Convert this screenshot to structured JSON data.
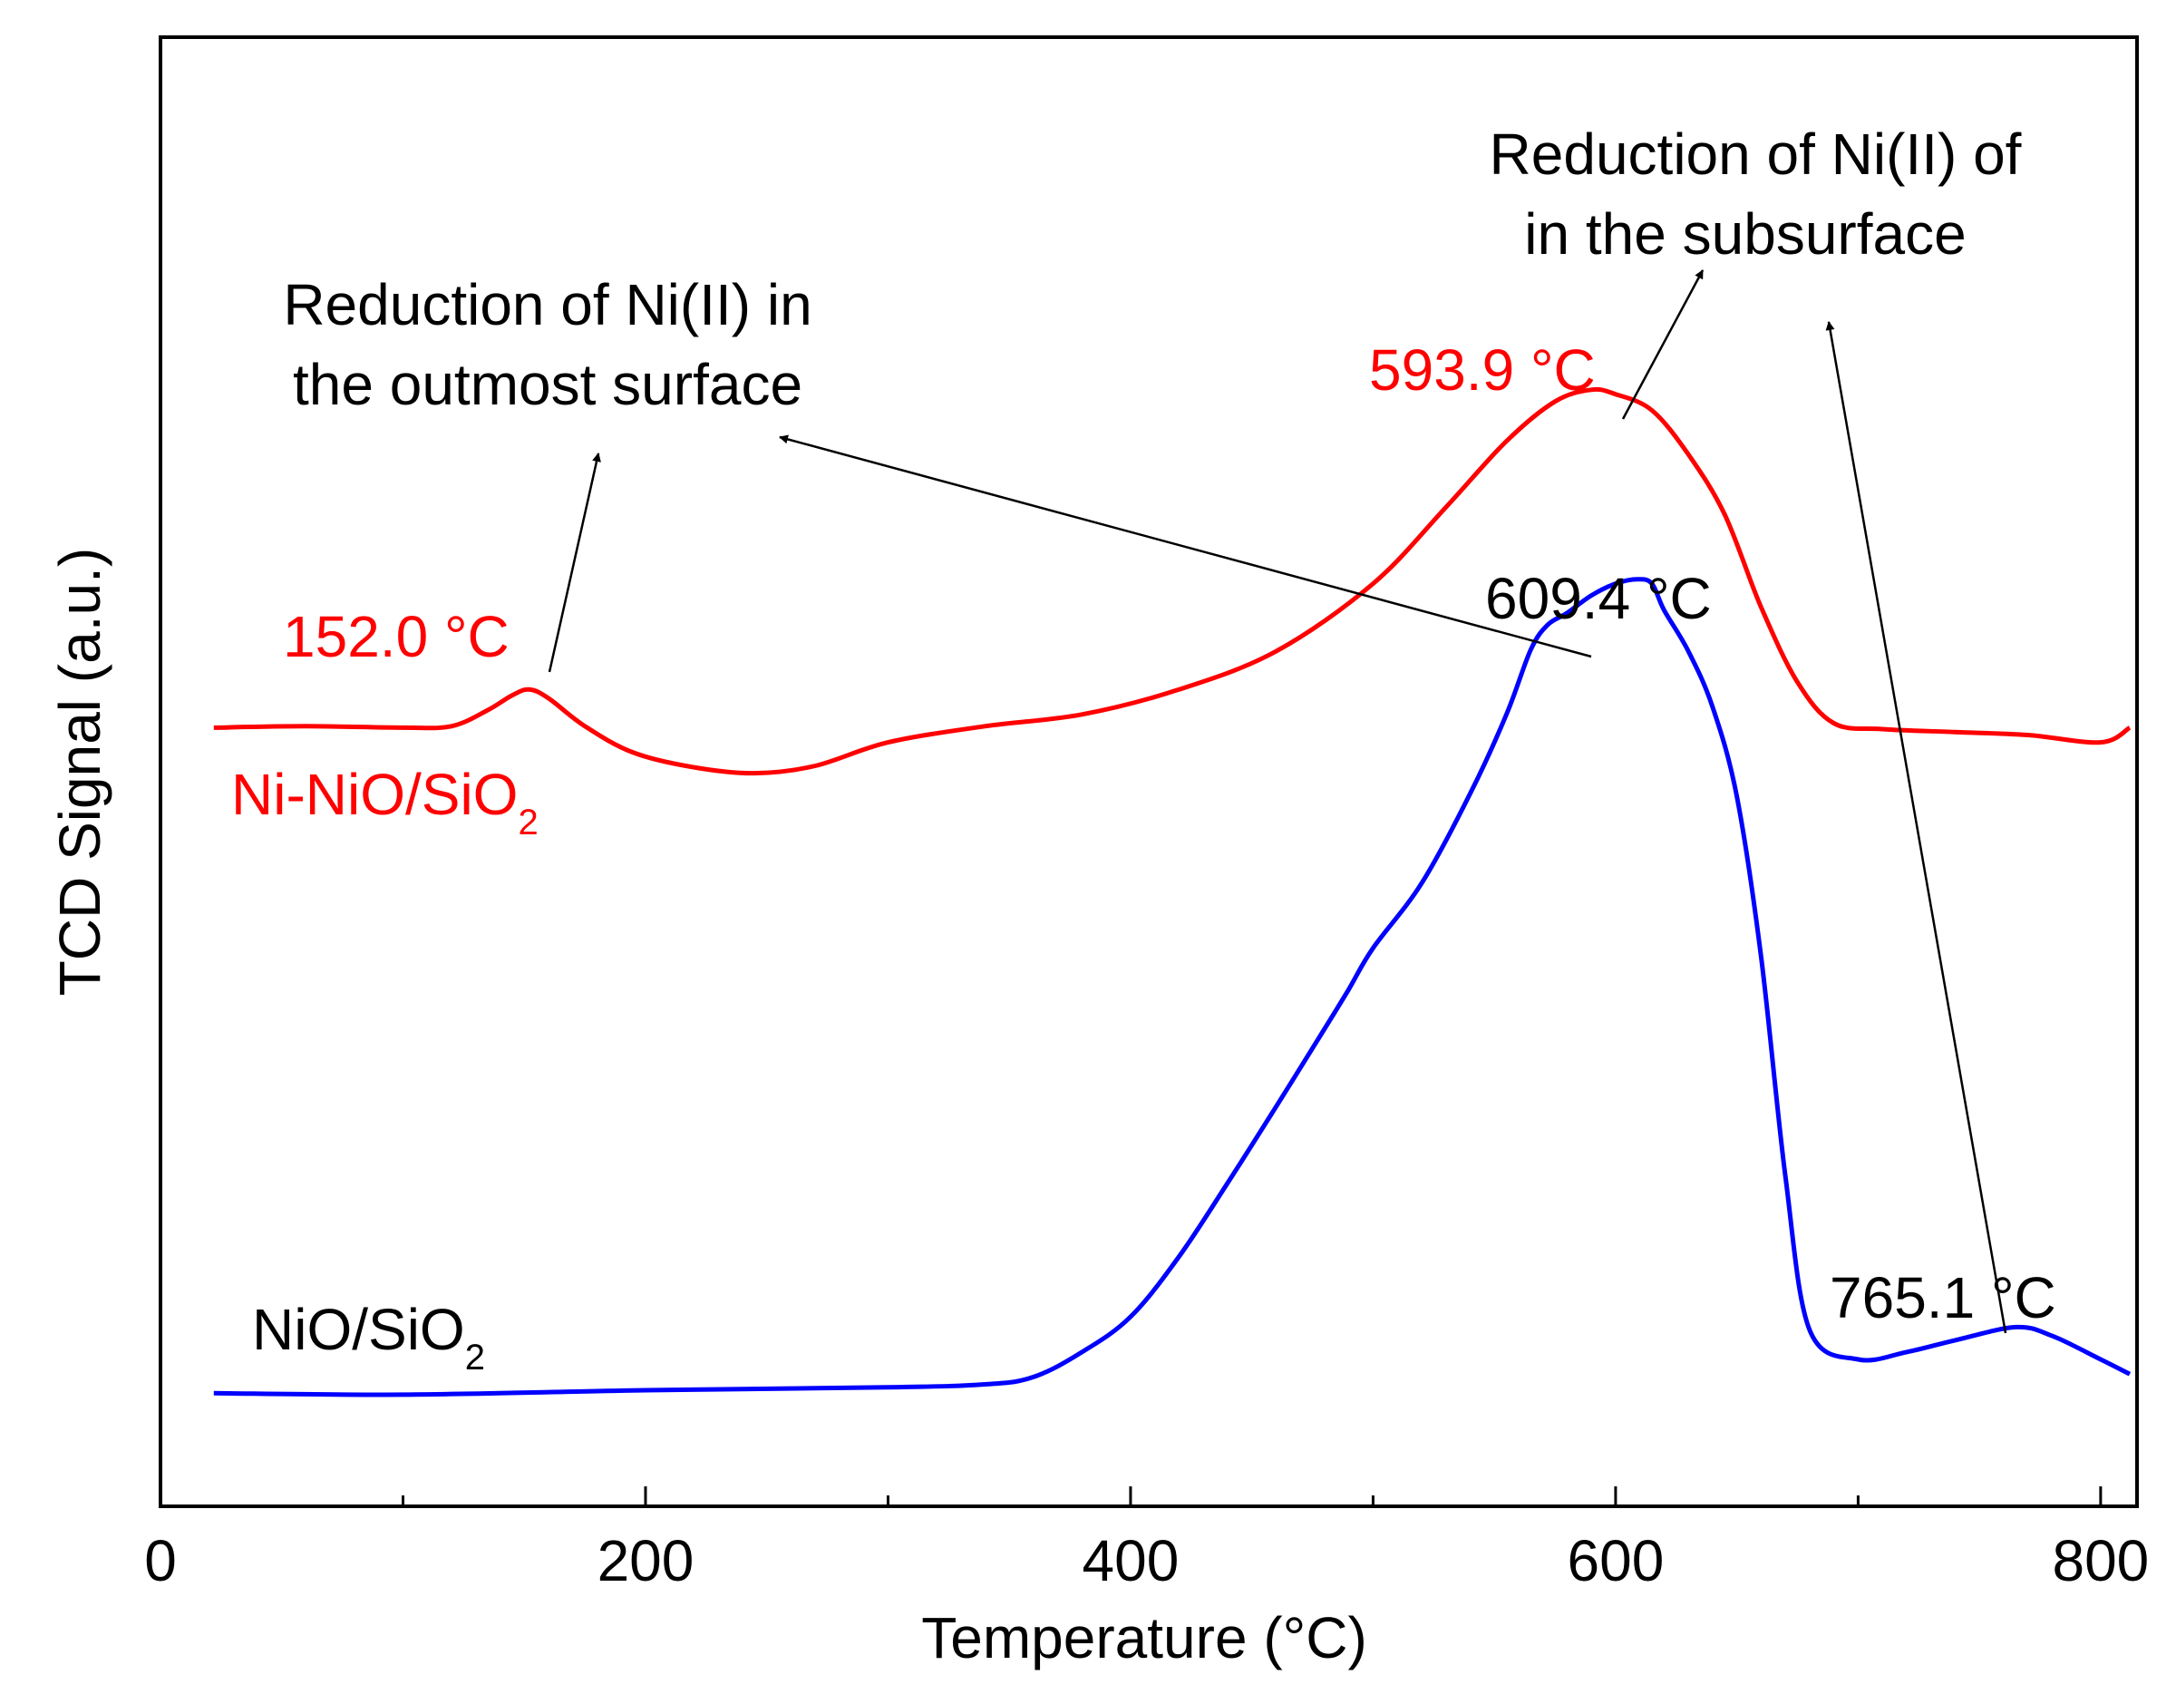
{
  "chart_data": {
    "type": "line",
    "title": "",
    "xlabel": "Temperature (°C)",
    "ylabel": "TCD Signal (a.u.)",
    "xlim": [
      0,
      815
    ],
    "ylim": [
      0,
      100
    ],
    "x_ticks": [
      0,
      200,
      400,
      600,
      800
    ],
    "x_tick_labels": [
      "0",
      "200",
      "400",
      "600",
      "800"
    ],
    "y_ticks_labeled": false,
    "series": [
      {
        "name": "Ni-NiO/SiO2",
        "label_main": "Ni-NiO/SiO",
        "label_sub": "2",
        "color": "#ff0000",
        "x": [
          22,
          60,
          100,
          120,
          135,
          145,
          152,
          160,
          175,
          195,
          220,
          245,
          270,
          300,
          340,
          380,
          420,
          460,
          500,
          530,
          555,
          575,
          590,
          600,
          615,
          630,
          645,
          660,
          675,
          690,
          710,
          740,
          770,
          800,
          812
        ],
        "y": [
          53.0,
          53.1,
          53.0,
          53.1,
          54.2,
          55.2,
          55.6,
          55.0,
          53.1,
          51.3,
          50.3,
          49.9,
          50.4,
          52.0,
          53.1,
          53.9,
          55.6,
          58.2,
          62.8,
          68.0,
          72.5,
          75.2,
          76.0,
          75.7,
          74.6,
          71.6,
          67.5,
          61.2,
          56.1,
          53.3,
          52.9,
          52.7,
          52.5,
          52.0,
          53.0
        ]
      },
      {
        "name": "NiO/SiO2",
        "label_main": "NiO/SiO",
        "label_sub": "2",
        "color": "#0000ff",
        "x": [
          22,
          100,
          200,
          300,
          340,
          360,
          380,
          400,
          420,
          440,
          460,
          480,
          490,
          500,
          520,
          540,
          555,
          565,
          572,
          580,
          590,
          600,
          609,
          615,
          620,
          630,
          640,
          650,
          660,
          670,
          680,
          700,
          720,
          740,
          765,
          780,
          800,
          812
        ],
        "y": [
          7.7,
          7.6,
          7.9,
          8.1,
          8.3,
          8.8,
          10.5,
          12.9,
          17.0,
          22.0,
          27.2,
          32.5,
          35.2,
          38.0,
          42.4,
          48.5,
          53.9,
          58.3,
          60.0,
          60.8,
          62.0,
          62.8,
          63.1,
          62.8,
          61.0,
          58.2,
          54.4,
          48.3,
          37.4,
          22.5,
          12.0,
          10.0,
          10.5,
          11.3,
          12.2,
          11.6,
          10.0,
          9.0
        ]
      }
    ],
    "peak_labels": [
      {
        "text": "152.0 °C",
        "color": "#ff0000",
        "x": 152,
        "y": 55.6
      },
      {
        "text": "593.9 °C",
        "color": "#ff0000",
        "x": 593.9,
        "y": 76.0
      },
      {
        "text": "609.4 °C",
        "color": "#000000",
        "x": 609.4,
        "y": 63.1
      },
      {
        "text": "765.1 °C",
        "color": "#000000",
        "x": 765.1,
        "y": 12.2
      }
    ],
    "annotations": [
      {
        "lines": [
          "Reduction of Ni(II) in",
          "the outmost surface"
        ],
        "color": "#000000"
      },
      {
        "lines": [
          "Reduction of Ni(II) of",
          "in the subsurface"
        ],
        "color": "#000000"
      }
    ]
  }
}
